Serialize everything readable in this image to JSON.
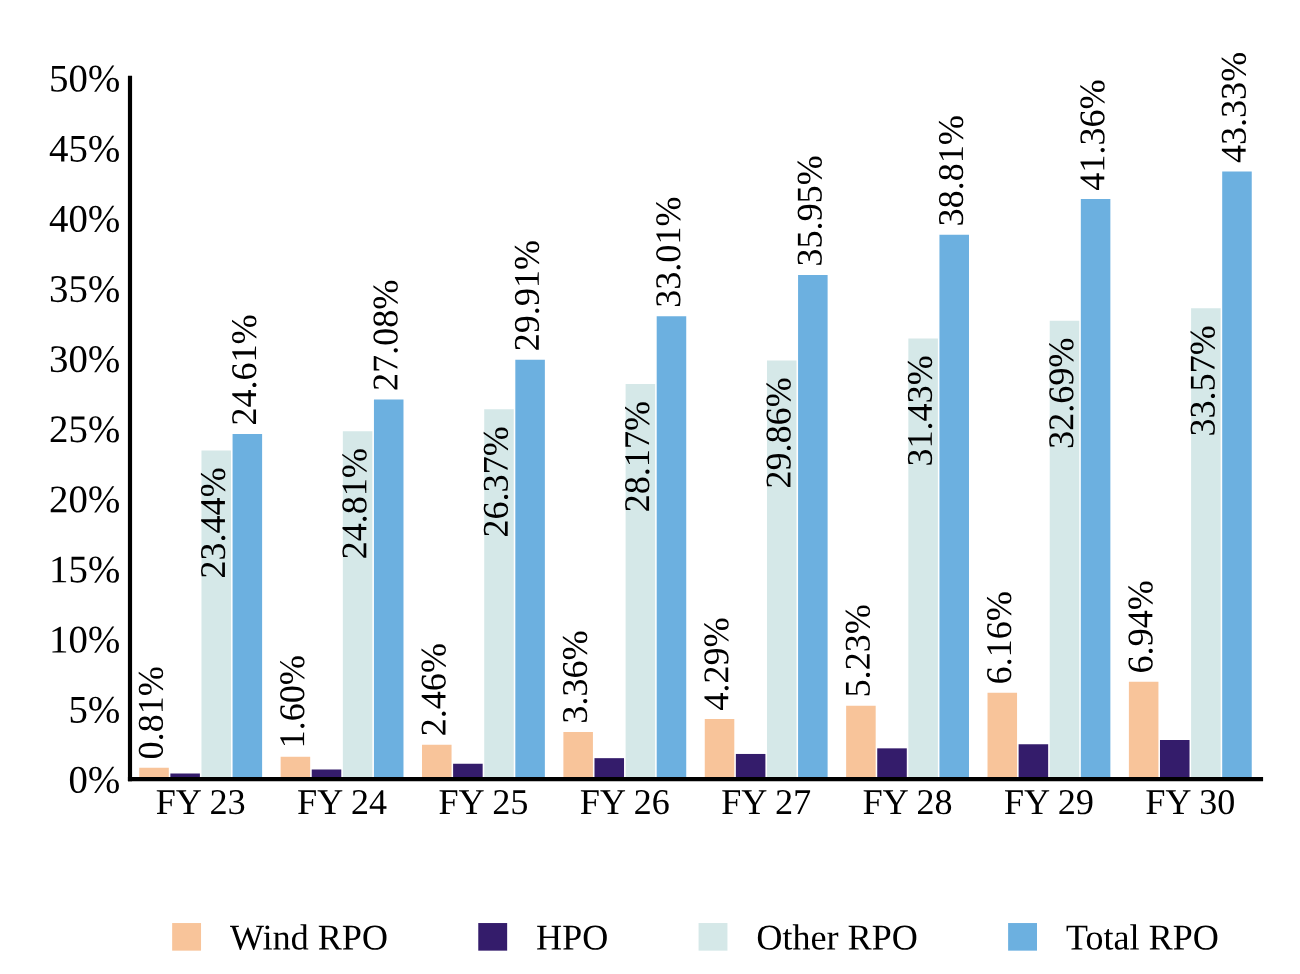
{
  "chart_data": {
    "type": "bar",
    "categories": [
      "FY 23",
      "FY 24",
      "FY 25",
      "FY 26",
      "FY 27",
      "FY 28",
      "FY 29",
      "FY 30"
    ],
    "series": [
      {
        "name": "Wind RPO",
        "color": "#f8c49a",
        "values": [
          0.81,
          1.6,
          2.46,
          3.36,
          4.29,
          5.23,
          6.16,
          6.94
        ],
        "value_labels": [
          "0.81%",
          "1.60%",
          "2.46%",
          "3.36%",
          "4.29%",
          "5.23%",
          "6.16%",
          "6.94%"
        ]
      },
      {
        "name": "HPO",
        "color": "#341c6b",
        "values": [
          0.4,
          0.7,
          1.1,
          1.5,
          1.8,
          2.2,
          2.5,
          2.8
        ]
      },
      {
        "name": "Other RPO",
        "color": "#d5e8e8",
        "values": [
          23.44,
          24.81,
          26.37,
          28.17,
          29.86,
          31.43,
          32.69,
          33.57
        ],
        "value_labels": [
          "23.44%",
          "24.81%",
          "26.37%",
          "28.17%",
          "29.86%",
          "31.43%",
          "32.69%",
          "33.57%"
        ]
      },
      {
        "name": "Total RPO",
        "color": "#6cb0e0",
        "values": [
          24.61,
          27.08,
          29.91,
          33.01,
          35.95,
          38.81,
          41.36,
          43.33
        ],
        "value_labels": [
          "24.61%",
          "27.08%",
          "29.91%",
          "33.01%",
          "35.95%",
          "38.81%",
          "41.36%",
          "43.33%"
        ]
      }
    ],
    "ylim": [
      0,
      50
    ],
    "yticks": [
      {
        "value": 0,
        "label": "0%"
      },
      {
        "value": 5,
        "label": "5%"
      },
      {
        "value": 10,
        "label": "10%"
      },
      {
        "value": 15,
        "label": "15%"
      },
      {
        "value": 20,
        "label": "20%"
      },
      {
        "value": 25,
        "label": "25%"
      },
      {
        "value": 30,
        "label": "30%"
      },
      {
        "value": 35,
        "label": "35%"
      },
      {
        "value": 40,
        "label": "40%"
      },
      {
        "value": 45,
        "label": "45%"
      },
      {
        "value": 50,
        "label": "50%"
      }
    ],
    "grid": false,
    "legend": "bottom"
  }
}
